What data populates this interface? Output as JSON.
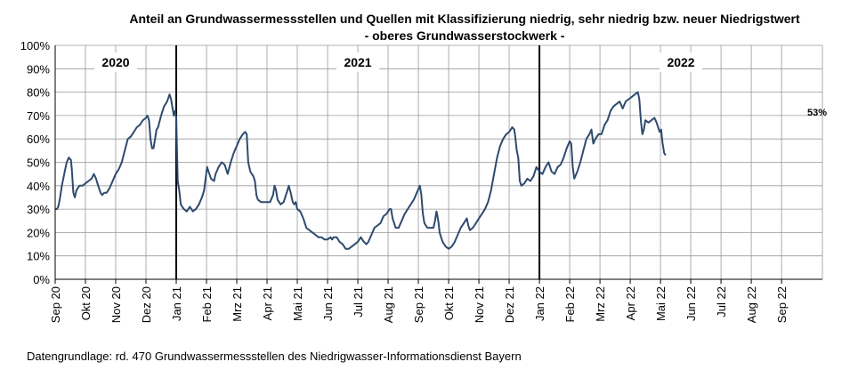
{
  "chart_data": {
    "type": "line",
    "title": "Anteil an Grundwassermessstellen und Quellen mit Klassifizierung niedrig, sehr niedrig bzw. neuer Niedrigstwert",
    "subtitle": "- oberes Grundwasserstockwerk -",
    "xlabel": "",
    "ylabel": "",
    "ylim": [
      0,
      100
    ],
    "y_ticks": [
      "0%",
      "10%",
      "20%",
      "30%",
      "40%",
      "50%",
      "60%",
      "70%",
      "80%",
      "90%",
      "100%"
    ],
    "x_ticks": [
      "Sep 20",
      "Okt 20",
      "Nov 20",
      "Dez 20",
      "Jan 21",
      "Feb 21",
      "Mrz 21",
      "Apr 21",
      "Mai 21",
      "Jun 21",
      "Jul 21",
      "Aug 21",
      "Sep 21",
      "Okt 21",
      "Nov 21",
      "Dez 21",
      "Jan 22",
      "Feb 22",
      "Mrz 22",
      "Apr 22",
      "Mai 22",
      "Jun 22",
      "Jul 22",
      "Aug 22",
      "Sep 22"
    ],
    "x_range": [
      "Sep 20",
      "Okt 22"
    ],
    "grid": true,
    "year_labels": [
      "2020",
      "2021",
      "2022"
    ],
    "year_dividers": [
      "Jan 21",
      "Jan 22"
    ],
    "annotation": "53%",
    "line_color": "#2e4b6e",
    "series": [
      {
        "name": "",
        "points": [
          [
            0.0,
            30
          ],
          [
            0.06,
            30
          ],
          [
            0.1,
            31
          ],
          [
            0.15,
            34
          ],
          [
            0.22,
            40
          ],
          [
            0.3,
            45
          ],
          [
            0.38,
            50
          ],
          [
            0.45,
            52
          ],
          [
            0.52,
            51
          ],
          [
            0.55,
            47
          ],
          [
            0.6,
            37
          ],
          [
            0.65,
            35
          ],
          [
            0.7,
            38
          ],
          [
            0.8,
            40
          ],
          [
            0.9,
            40
          ],
          [
            1.0,
            41
          ],
          [
            1.1,
            42
          ],
          [
            1.2,
            43
          ],
          [
            1.28,
            45
          ],
          [
            1.35,
            43
          ],
          [
            1.42,
            40
          ],
          [
            1.5,
            37
          ],
          [
            1.55,
            36
          ],
          [
            1.62,
            37
          ],
          [
            1.7,
            37
          ],
          [
            1.8,
            39
          ],
          [
            1.9,
            42
          ],
          [
            2.0,
            45
          ],
          [
            2.1,
            47
          ],
          [
            2.2,
            50
          ],
          [
            2.3,
            55
          ],
          [
            2.4,
            60
          ],
          [
            2.5,
            61
          ],
          [
            2.6,
            63
          ],
          [
            2.7,
            65
          ],
          [
            2.8,
            66
          ],
          [
            2.9,
            68
          ],
          [
            3.0,
            69
          ],
          [
            3.05,
            70
          ],
          [
            3.1,
            68
          ],
          [
            3.15,
            60
          ],
          [
            3.2,
            56
          ],
          [
            3.25,
            56
          ],
          [
            3.3,
            60
          ],
          [
            3.35,
            64
          ],
          [
            3.4,
            65
          ],
          [
            3.5,
            70
          ],
          [
            3.6,
            74
          ],
          [
            3.7,
            76
          ],
          [
            3.78,
            79
          ],
          [
            3.83,
            77
          ],
          [
            3.88,
            73
          ],
          [
            3.92,
            70
          ],
          [
            3.96,
            72
          ],
          [
            4.0,
            69
          ],
          [
            4.05,
            42
          ],
          [
            4.1,
            38
          ],
          [
            4.15,
            32
          ],
          [
            4.2,
            31
          ],
          [
            4.25,
            30
          ],
          [
            4.35,
            29
          ],
          [
            4.45,
            31
          ],
          [
            4.55,
            29
          ],
          [
            4.65,
            30
          ],
          [
            4.75,
            32
          ],
          [
            4.85,
            35
          ],
          [
            4.92,
            38
          ],
          [
            4.97,
            43
          ],
          [
            5.02,
            48
          ],
          [
            5.07,
            46
          ],
          [
            5.15,
            43
          ],
          [
            5.25,
            42
          ],
          [
            5.3,
            45
          ],
          [
            5.4,
            48
          ],
          [
            5.5,
            50
          ],
          [
            5.6,
            49
          ],
          [
            5.7,
            45
          ],
          [
            5.8,
            50
          ],
          [
            5.9,
            54
          ],
          [
            6.0,
            57
          ],
          [
            6.1,
            60
          ],
          [
            6.2,
            62
          ],
          [
            6.28,
            63
          ],
          [
            6.33,
            62
          ],
          [
            6.38,
            50
          ],
          [
            6.45,
            46
          ],
          [
            6.55,
            44
          ],
          [
            6.6,
            42
          ],
          [
            6.65,
            36
          ],
          [
            6.7,
            34
          ],
          [
            6.8,
            33
          ],
          [
            6.9,
            33
          ],
          [
            7.0,
            33
          ],
          [
            7.1,
            33
          ],
          [
            7.2,
            36
          ],
          [
            7.25,
            40
          ],
          [
            7.3,
            38
          ],
          [
            7.35,
            34
          ],
          [
            7.45,
            32
          ],
          [
            7.55,
            33
          ],
          [
            7.65,
            37
          ],
          [
            7.72,
            40
          ],
          [
            7.78,
            37
          ],
          [
            7.85,
            33
          ],
          [
            7.9,
            32
          ],
          [
            7.95,
            33
          ],
          [
            8.0,
            30
          ],
          [
            8.1,
            29
          ],
          [
            8.2,
            26
          ],
          [
            8.3,
            22
          ],
          [
            8.4,
            21
          ],
          [
            8.5,
            20
          ],
          [
            8.6,
            19
          ],
          [
            8.7,
            18
          ],
          [
            8.8,
            18
          ],
          [
            8.9,
            17
          ],
          [
            9.0,
            17
          ],
          [
            9.1,
            18
          ],
          [
            9.15,
            17
          ],
          [
            9.2,
            18
          ],
          [
            9.3,
            18
          ],
          [
            9.4,
            16
          ],
          [
            9.5,
            15
          ],
          [
            9.55,
            14
          ],
          [
            9.6,
            13
          ],
          [
            9.7,
            13
          ],
          [
            9.8,
            14
          ],
          [
            9.9,
            15
          ],
          [
            10.0,
            16
          ],
          [
            10.05,
            17
          ],
          [
            10.1,
            18
          ],
          [
            10.2,
            16
          ],
          [
            10.28,
            15
          ],
          [
            10.35,
            16
          ],
          [
            10.45,
            19
          ],
          [
            10.55,
            22
          ],
          [
            10.65,
            23
          ],
          [
            10.75,
            24
          ],
          [
            10.85,
            27
          ],
          [
            10.95,
            28
          ],
          [
            11.05,
            30
          ],
          [
            11.1,
            30
          ],
          [
            11.15,
            26
          ],
          [
            11.25,
            22
          ],
          [
            11.35,
            22
          ],
          [
            11.45,
            25
          ],
          [
            11.55,
            28
          ],
          [
            11.65,
            30
          ],
          [
            11.75,
            32
          ],
          [
            11.85,
            34
          ],
          [
            11.95,
            37
          ],
          [
            12.05,
            40
          ],
          [
            12.1,
            36
          ],
          [
            12.15,
            28
          ],
          [
            12.2,
            24
          ],
          [
            12.3,
            22
          ],
          [
            12.4,
            22
          ],
          [
            12.5,
            22
          ],
          [
            12.55,
            25
          ],
          [
            12.6,
            29
          ],
          [
            12.63,
            27
          ],
          [
            12.67,
            24
          ],
          [
            12.7,
            20
          ],
          [
            12.75,
            18
          ],
          [
            12.8,
            16
          ],
          [
            12.9,
            14
          ],
          [
            13.0,
            13
          ],
          [
            13.1,
            14
          ],
          [
            13.2,
            16
          ],
          [
            13.3,
            19
          ],
          [
            13.4,
            22
          ],
          [
            13.5,
            24
          ],
          [
            13.6,
            26
          ],
          [
            13.65,
            23
          ],
          [
            13.7,
            21
          ],
          [
            13.8,
            22
          ],
          [
            13.9,
            24
          ],
          [
            14.0,
            26
          ],
          [
            14.1,
            28
          ],
          [
            14.2,
            30
          ],
          [
            14.3,
            33
          ],
          [
            14.4,
            38
          ],
          [
            14.5,
            45
          ],
          [
            14.6,
            52
          ],
          [
            14.7,
            57
          ],
          [
            14.8,
            60
          ],
          [
            14.9,
            62
          ],
          [
            15.0,
            63
          ],
          [
            15.1,
            65
          ],
          [
            15.17,
            64
          ],
          [
            15.2,
            61
          ],
          [
            15.25,
            55
          ],
          [
            15.3,
            52
          ],
          [
            15.35,
            42
          ],
          [
            15.4,
            40
          ],
          [
            15.5,
            41
          ],
          [
            15.6,
            43
          ],
          [
            15.7,
            42
          ],
          [
            15.8,
            44
          ],
          [
            15.9,
            48
          ],
          [
            16.0,
            46
          ],
          [
            16.1,
            45
          ],
          [
            16.2,
            48
          ],
          [
            16.3,
            50
          ],
          [
            16.4,
            46
          ],
          [
            16.5,
            45
          ],
          [
            16.6,
            48
          ],
          [
            16.7,
            49
          ],
          [
            16.8,
            52
          ],
          [
            16.9,
            56
          ],
          [
            17.0,
            59
          ],
          [
            17.05,
            58
          ],
          [
            17.1,
            48
          ],
          [
            17.15,
            43
          ],
          [
            17.25,
            46
          ],
          [
            17.35,
            50
          ],
          [
            17.45,
            55
          ],
          [
            17.55,
            60
          ],
          [
            17.65,
            62
          ],
          [
            17.72,
            64
          ],
          [
            17.78,
            58
          ],
          [
            17.85,
            60
          ],
          [
            17.95,
            62
          ],
          [
            18.05,
            62
          ],
          [
            18.15,
            66
          ],
          [
            18.25,
            68
          ],
          [
            18.35,
            72
          ],
          [
            18.45,
            74
          ],
          [
            18.55,
            75
          ],
          [
            18.65,
            76
          ],
          [
            18.75,
            73
          ],
          [
            18.85,
            76
          ],
          [
            18.95,
            77
          ],
          [
            19.05,
            78
          ],
          [
            19.15,
            79
          ],
          [
            19.25,
            80
          ],
          [
            19.3,
            77
          ],
          [
            19.35,
            68
          ],
          [
            19.4,
            62
          ],
          [
            19.45,
            64
          ],
          [
            19.5,
            68
          ],
          [
            19.6,
            67
          ],
          [
            19.7,
            68
          ],
          [
            19.8,
            69
          ],
          [
            19.87,
            67
          ],
          [
            19.92,
            65
          ],
          [
            19.97,
            63
          ],
          [
            20.02,
            64
          ],
          [
            20.07,
            58
          ],
          [
            20.12,
            54
          ],
          [
            20.17,
            53
          ]
        ]
      }
    ]
  },
  "footnote": "Datengrundlage:  rd. 470 Grundwassermessstellen  des Niedrigwasser-Informationsdienst  Bayern"
}
